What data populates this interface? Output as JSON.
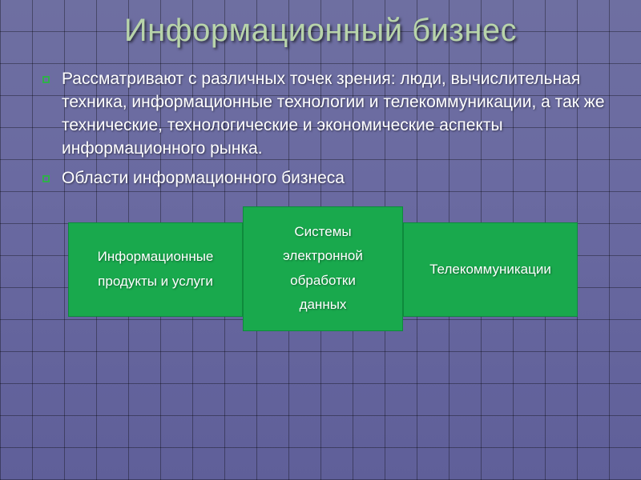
{
  "title": {
    "text": "Информационный бизнес",
    "color": "#b8d4aa",
    "fontsize": 40
  },
  "bullets": {
    "items": [
      "Рассматривают с различных точек зрения: люди, вычислительная техника, информационные технологии и телекоммуникации, а так же технические, технологические и экономические аспекты информационного рынка.",
      "Области информационного бизнеса"
    ],
    "text_color": "#ffffff",
    "marker_color": "#2fb04a",
    "fontsize": 21
  },
  "boxes": {
    "background_color": "#19a94d",
    "border_color": "#0e8a3c",
    "text_color": "#ffffff",
    "fontsize": 17,
    "items": [
      {
        "lines": [
          "Информационные",
          "продукты и услуги"
        ]
      },
      {
        "lines": [
          "Системы",
          "электронной",
          "обработки",
          "данных"
        ]
      },
      {
        "lines": [
          "Телекоммуникации"
        ]
      }
    ]
  },
  "background": {
    "grid_color": "rgba(0,0,0,0.35)",
    "base_gradient_top": "#6e6fa1",
    "base_gradient_bottom": "#5f5f99"
  }
}
